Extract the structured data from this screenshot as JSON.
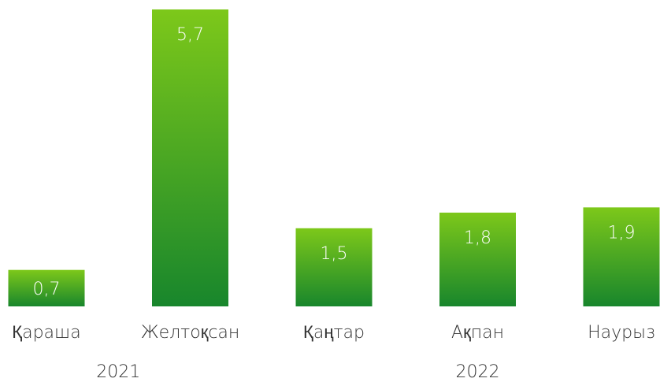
{
  "chart_data": {
    "type": "bar",
    "categories": [
      "Қараша",
      "Желтоқсан",
      "Қаңтар",
      "Ақпан",
      "Наурыз"
    ],
    "values": [
      0.7,
      5.7,
      1.5,
      1.8,
      1.9
    ],
    "value_labels": [
      "0,7",
      "5,7",
      "1,5",
      "1,8",
      "1,9"
    ],
    "groups": [
      {
        "name": "2021",
        "size": 2
      },
      {
        "name": "2022",
        "size": 3
      }
    ],
    "color": [
      "#7dc81a",
      "#18862c"
    ]
  }
}
